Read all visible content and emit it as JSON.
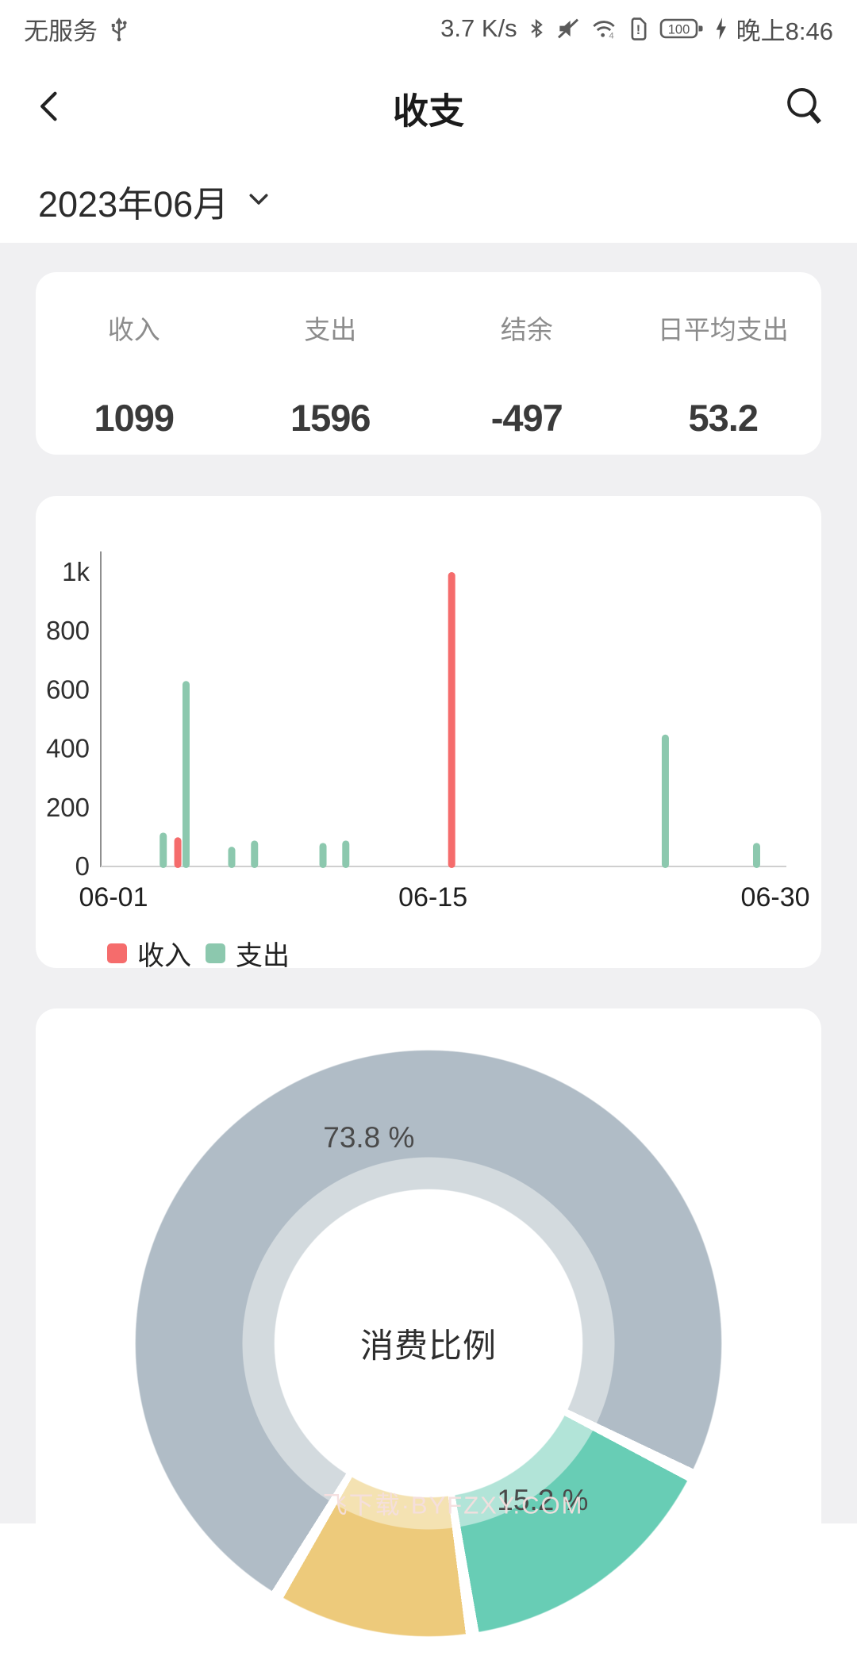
{
  "status_bar": {
    "carrier": "无服务",
    "net_speed": "3.7 K/s",
    "wifi_gen": "4",
    "sim_alert": "!",
    "battery_level": "100",
    "time": "晚上8:46"
  },
  "header": {
    "title": "收支"
  },
  "date_picker": {
    "value": "2023年06月"
  },
  "summary": {
    "items": [
      {
        "label": "收入",
        "value": "1099"
      },
      {
        "label": "支出",
        "value": "1596"
      },
      {
        "label": "结余",
        "value": "-497"
      },
      {
        "label": "日平均支出",
        "value": "53.2"
      }
    ]
  },
  "chart_data": [
    {
      "type": "bar",
      "title": "",
      "x_axis": {
        "range_days": [
          1,
          30
        ],
        "ticks": [
          {
            "day": 1,
            "label": "06-01"
          },
          {
            "day": 15,
            "label": "06-15"
          },
          {
            "day": 30,
            "label": "06-30"
          }
        ]
      },
      "y_axis": {
        "max": 1080,
        "ticks": [
          {
            "value": 0,
            "label": "0"
          },
          {
            "value": 200,
            "label": "200"
          },
          {
            "value": 400,
            "label": "400"
          },
          {
            "value": 600,
            "label": "600"
          },
          {
            "value": 800,
            "label": "800"
          },
          {
            "value": 1000,
            "label": "1k"
          }
        ]
      },
      "series": [
        {
          "name": "收入",
          "color": "#f56c6c",
          "points": [
            {
              "day": 4,
              "value": 99
            },
            {
              "day": 16,
              "value": 1000
            }
          ]
        },
        {
          "name": "支出",
          "color": "#8cc8ae",
          "points": [
            {
              "day": 3,
              "value": 115
            },
            {
              "day": 4,
              "value": 630
            },
            {
              "day": 6,
              "value": 67
            },
            {
              "day": 7,
              "value": 88
            },
            {
              "day": 10,
              "value": 80
            },
            {
              "day": 11,
              "value": 88
            },
            {
              "day": 25,
              "value": 448
            },
            {
              "day": 29,
              "value": 80
            }
          ]
        }
      ]
    },
    {
      "type": "pie",
      "center_label": "消费比例",
      "start_angle_deg": 211,
      "slice_gap_deg": 2.6,
      "legend_position": "none",
      "slices": [
        {
          "pct": 73.8,
          "label": "73.8 %",
          "color": "#b0bcc6",
          "color_light": "#d3dade",
          "label_visible": true
        },
        {
          "pct": 15.2,
          "label": "15.2 %",
          "color": "#68cdb5",
          "color_light": "#b2e4d8",
          "label_visible": true
        },
        {
          "pct": 11.0,
          "label": "",
          "color": "#edca7b",
          "color_light": "#f4e2b2",
          "label_visible": false
        }
      ]
    }
  ],
  "watermark": "飞下载·BYFZXY.COM",
  "colors": {
    "background": "#f0f0f2",
    "card": "#ffffff"
  }
}
